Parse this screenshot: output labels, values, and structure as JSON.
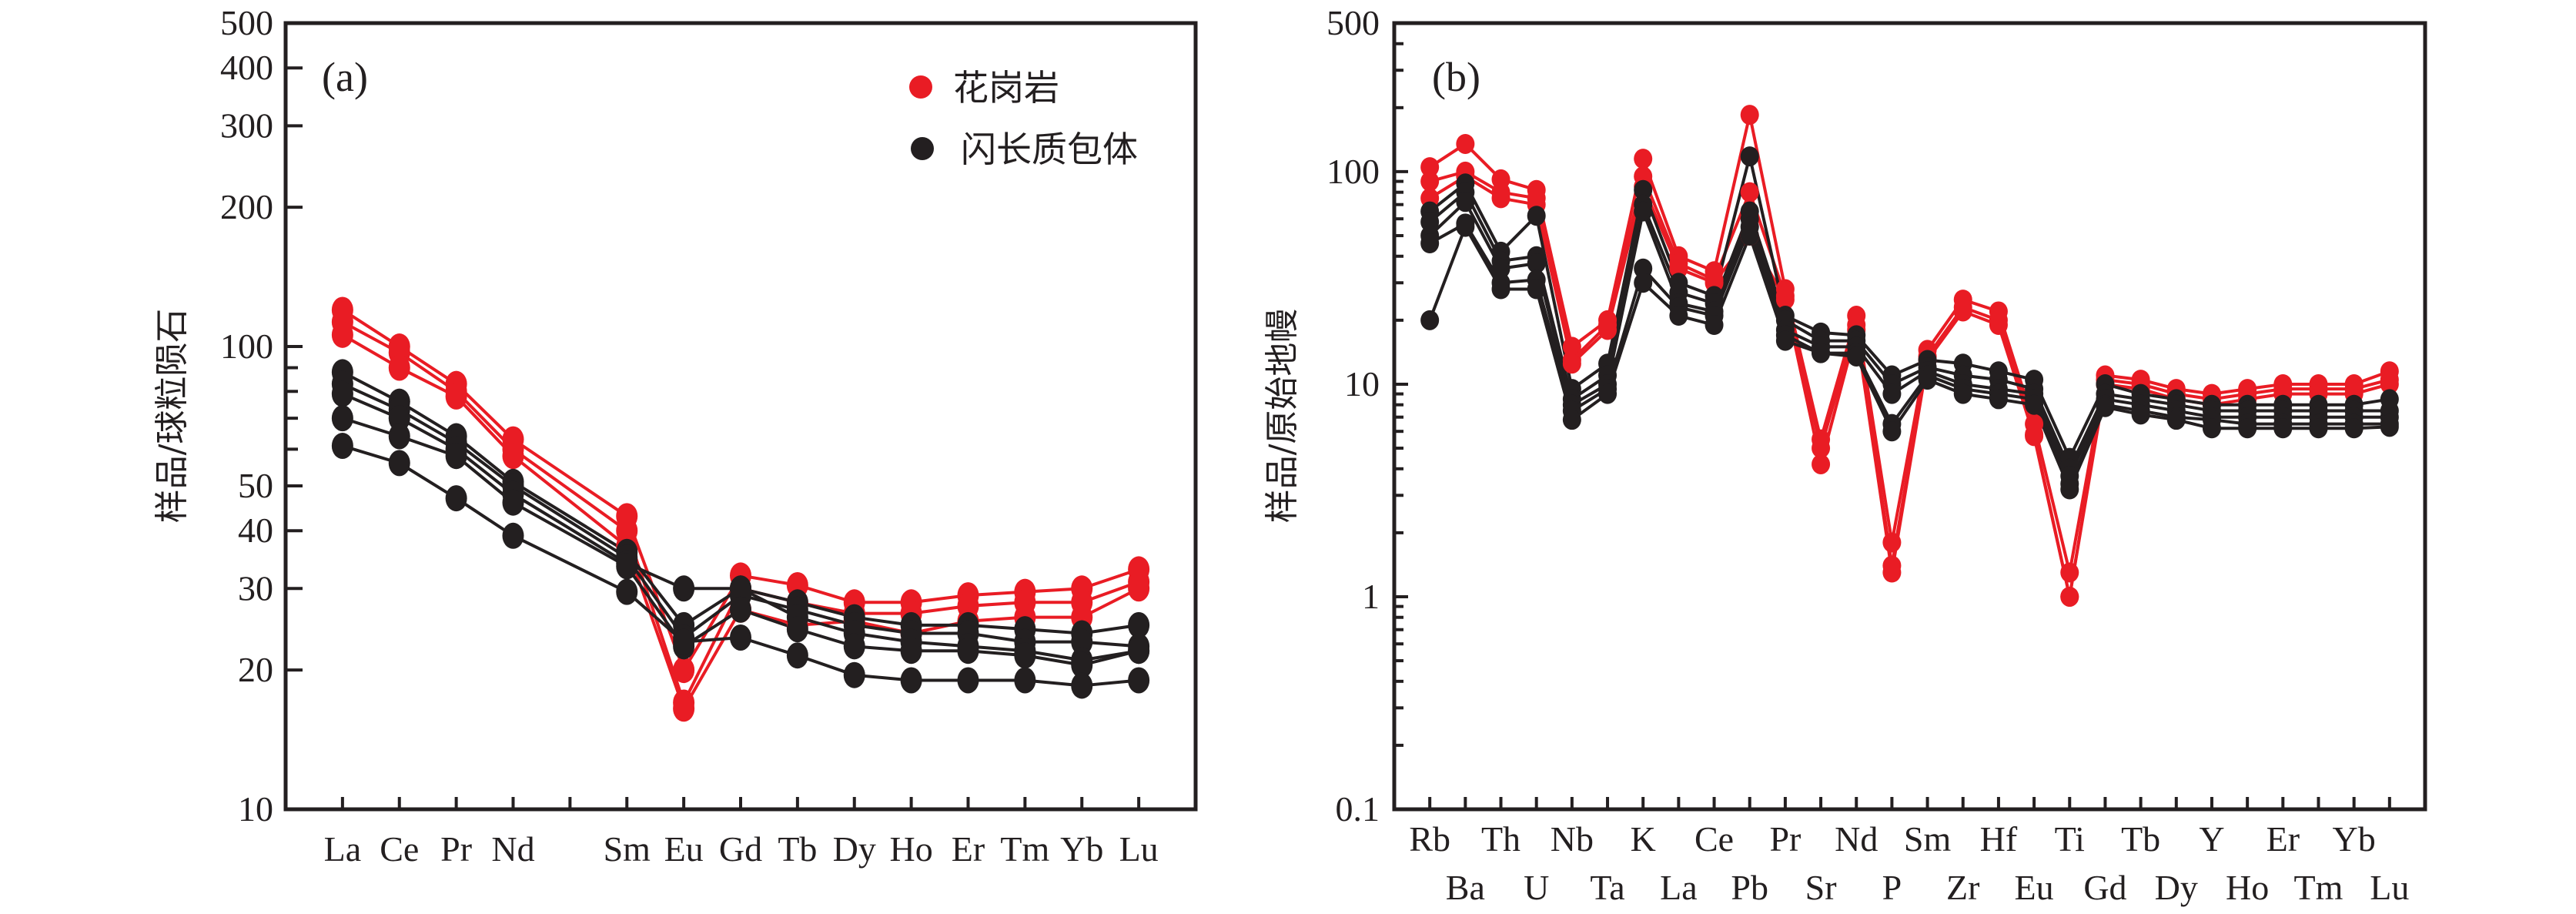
{
  "colors": {
    "granite": "#e91c24",
    "enclave": "#231f20",
    "axis": "#231f20"
  },
  "chart_data": [
    {
      "type": "line",
      "panel": "(a)",
      "title": "",
      "xlabel": "",
      "ylabel": "样品/球粒陨石",
      "yscale": "log",
      "ylim": [
        10,
        500
      ],
      "yticks": [
        10,
        20,
        30,
        40,
        50,
        100,
        200,
        300,
        400,
        500
      ],
      "ytick_labels": [
        "10",
        "20",
        "30",
        "40",
        "50",
        "100",
        "200",
        "300",
        "400",
        "500"
      ],
      "minor_yticks": [
        60,
        70,
        80,
        90
      ],
      "categories": [
        "La",
        "Ce",
        "Pr",
        "Nd",
        "",
        "Sm",
        "Eu",
        "Gd",
        "Tb",
        "Dy",
        "Ho",
        "Er",
        "Tm",
        "Yb",
        "Lu"
      ],
      "legend": {
        "placement": "top-right",
        "entries": [
          {
            "label": "花岗岩",
            "group": "granite"
          },
          {
            "label": "闪长质包体",
            "group": "enclave"
          }
        ]
      },
      "series": [
        {
          "name": "花岗岩-1",
          "group": "granite",
          "values": [
            120,
            100,
            83,
            63,
            null,
            43,
            20,
            32,
            30.5,
            28,
            28,
            29,
            29.5,
            30,
            33
          ]
        },
        {
          "name": "花岗岩-2",
          "group": "granite",
          "values": [
            113,
            97,
            80,
            60,
            null,
            40,
            17,
            30,
            28,
            26.5,
            26.5,
            27.5,
            28,
            28,
            31
          ]
        },
        {
          "name": "花岗岩-3",
          "group": "granite",
          "values": [
            106,
            90,
            78,
            58,
            null,
            37,
            16.5,
            27,
            25,
            25.5,
            24,
            25.5,
            26,
            26,
            30
          ]
        },
        {
          "name": "闪长质包体-1",
          "group": "enclave",
          "values": [
            88,
            76,
            64,
            51,
            null,
            36,
            25,
            30,
            28,
            26,
            25,
            25,
            24.5,
            24,
            25
          ]
        },
        {
          "name": "闪长质包体-2",
          "group": "enclave",
          "values": [
            83,
            73,
            62,
            50,
            null,
            35,
            23.5,
            29,
            27,
            25,
            24,
            24,
            23,
            23,
            22.5
          ]
        },
        {
          "name": "闪长质包体-3",
          "group": "enclave",
          "values": [
            79,
            70,
            60,
            48,
            null,
            34,
            30,
            30,
            26,
            24,
            23,
            22.5,
            22,
            21,
            22
          ]
        },
        {
          "name": "闪长质包体-4",
          "group": "enclave",
          "values": [
            70,
            64,
            58,
            46,
            null,
            33.5,
            22.5,
            27,
            24.5,
            22.5,
            22,
            22,
            21.5,
            20.5,
            22
          ]
        },
        {
          "name": "闪长质包体-5",
          "group": "enclave",
          "values": [
            61,
            56,
            47,
            39,
            null,
            29.5,
            23,
            23.5,
            21.5,
            19.5,
            19,
            19,
            19,
            18.5,
            19
          ]
        }
      ]
    },
    {
      "type": "line",
      "panel": "(b)",
      "title": "",
      "xlabel": "",
      "ylabel": "样品/原始地幔",
      "yscale": "log",
      "ylim": [
        0.1,
        500
      ],
      "yticks": [
        0.1,
        1,
        10,
        100,
        500
      ],
      "ytick_labels": [
        "0.1",
        "1",
        "10",
        "100",
        "500"
      ],
      "categories": [
        "Rb",
        "Ba",
        "Th",
        "U",
        "Nb",
        "Ta",
        "K",
        "La",
        "Ce",
        "Pb",
        "Pr",
        "Sr",
        "Nd",
        "P",
        "Sm",
        "Zr",
        "Hf",
        "Eu",
        "Ti",
        "Gd",
        "Tb",
        "Dy",
        "Y",
        "Ho",
        "Er",
        "Tm",
        "Yb",
        "Lu"
      ],
      "series": [
        {
          "name": "花岗岩-1",
          "group": "granite",
          "values": [
            105,
            135,
            92,
            82,
            15,
            20,
            115,
            40,
            34,
            185,
            28,
            5.5,
            21,
            1.8,
            14.5,
            25,
            22,
            6.5,
            1.3,
            11,
            10.5,
            9.5,
            9,
            9.5,
            10,
            10,
            10,
            11.5
          ]
        },
        {
          "name": "花岗岩-2",
          "group": "granite",
          "values": [
            90,
            100,
            80,
            75,
            13,
            19,
            95,
            37,
            31,
            80,
            26,
            5.0,
            19,
            1.4,
            13.5,
            23,
            20,
            5.8,
            1.0,
            10.5,
            10,
            9,
            8.5,
            9,
            9.5,
            9.5,
            9.5,
            10.5
          ]
        },
        {
          "name": "花岗岩-3",
          "group": "granite",
          "values": [
            75,
            95,
            75,
            70,
            12.5,
            18,
            85,
            35,
            30,
            50,
            25,
            4.2,
            18,
            1.3,
            13,
            22,
            19,
            5.7,
            1.0,
            10,
            9.5,
            8.5,
            8,
            8.5,
            9,
            9,
            9,
            10
          ]
        },
        {
          "name": "闪长质包体-1",
          "group": "enclave",
          "values": [
            65,
            88,
            42,
            62,
            9.5,
            12.5,
            82,
            30,
            26,
            118,
            21,
            17.5,
            17,
            11,
            13,
            12.5,
            11.5,
            10.5,
            4.5,
            10,
            9,
            8.5,
            8,
            8,
            8,
            8,
            8,
            8.5
          ]
        },
        {
          "name": "闪长质包体-2",
          "group": "enclave",
          "values": [
            58,
            80,
            38,
            40,
            8.5,
            11,
            70,
            27,
            24,
            65,
            20,
            16,
            16,
            10,
            12,
            11,
            10.5,
            9.5,
            4.0,
            9,
            8.5,
            8,
            7.5,
            7.5,
            7.5,
            7.5,
            7.5,
            7.5
          ]
        },
        {
          "name": "闪长质包体-3",
          "group": "enclave",
          "values": [
            50,
            72,
            35,
            37,
            8,
            10,
            65,
            24,
            22,
            60,
            18,
            15,
            15,
            9.0,
            11.5,
            10,
            9.5,
            9,
            3.7,
            8.5,
            8,
            7.5,
            7,
            7,
            7,
            7,
            7,
            7
          ]
        },
        {
          "name": "闪长质包体-4",
          "group": "enclave",
          "values": [
            46,
            57,
            30,
            31,
            7.5,
            9.5,
            35,
            23,
            21,
            55,
            17,
            14,
            14,
            6.5,
            11,
            9.5,
            9,
            8.5,
            3.4,
            8,
            7.5,
            7,
            6.8,
            6.5,
            6.5,
            6.5,
            6.5,
            6.5
          ]
        },
        {
          "name": "闪长质包体-5",
          "group": "enclave",
          "values": [
            20,
            55,
            28,
            28,
            6.8,
            9,
            30,
            21,
            19,
            50,
            16,
            14,
            13.5,
            6.0,
            10.5,
            9,
            8.5,
            8,
            3.2,
            7.8,
            7.2,
            6.8,
            6.2,
            6.2,
            6.2,
            6.2,
            6.2,
            6.3
          ]
        }
      ]
    }
  ]
}
